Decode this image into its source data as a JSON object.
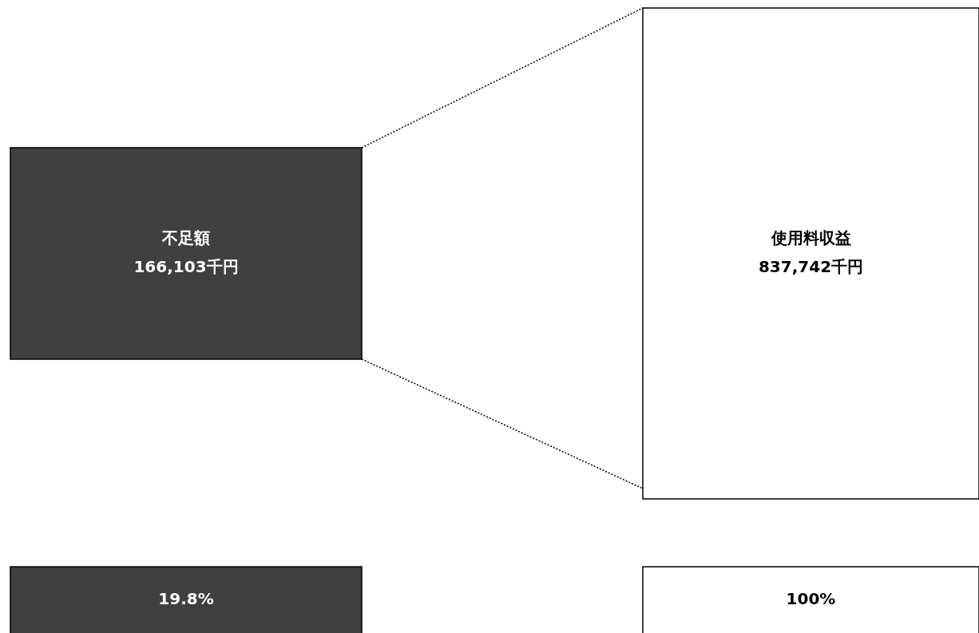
{
  "chart_data": {
    "type": "other",
    "categories": [
      "不足額",
      "使用料収益"
    ],
    "values": [
      166103,
      837742
    ],
    "value_labels": [
      "166,103千円",
      "837,742千円"
    ],
    "colors": [
      "#404040",
      "#ffffff"
    ],
    "annotations": [
      "19.8%",
      "100%"
    ]
  }
}
